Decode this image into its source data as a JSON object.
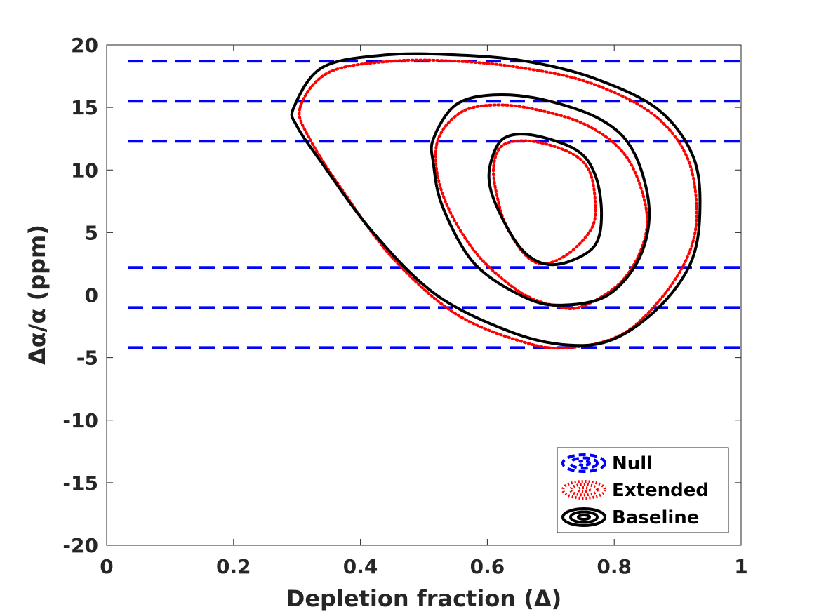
{
  "chart_data": {
    "type": "contour",
    "xlabel": "Depletion fraction (Δ)",
    "ylabel": "Δα/α (ppm)",
    "xlim": [
      0,
      1
    ],
    "ylim": [
      -20,
      20
    ],
    "xticks": [
      0,
      0.2,
      0.4,
      0.6,
      0.8,
      1
    ],
    "xtick_labels": [
      "0",
      "0.2",
      "0.4",
      "0.6",
      "0.8",
      "1"
    ],
    "yticks": [
      -20,
      -15,
      -10,
      -5,
      0,
      5,
      10,
      15,
      20
    ],
    "ytick_labels": [
      "-20",
      "-15",
      "-10",
      "-5",
      "0",
      "5",
      "10",
      "15",
      "20"
    ],
    "grid": false,
    "legend_position": "bottom-right",
    "series": [
      {
        "name": "Null",
        "color": "#0000ff",
        "style": "dashed",
        "lines": [
          {
            "y": 18.7,
            "x_range": [
              0,
              1
            ]
          },
          {
            "y": 15.5,
            "x_range": [
              0,
              1
            ]
          },
          {
            "y": 12.3,
            "x_range": [
              0,
              1
            ]
          },
          {
            "y": 2.2,
            "x_range": [
              0,
              1
            ]
          },
          {
            "y": -1.0,
            "x_range": [
              0,
              1
            ]
          },
          {
            "y": -4.2,
            "x_range": [
              0,
              1
            ]
          }
        ]
      },
      {
        "name": "Extended",
        "color": "#ff0000",
        "style": "dotted",
        "contours": [
          [
            [
              0.61,
              10.3
            ],
            [
              0.625,
              12.0
            ],
            [
              0.67,
              12.3
            ],
            [
              0.73,
              11.4
            ],
            [
              0.76,
              10.0
            ],
            [
              0.77,
              7.5
            ],
            [
              0.765,
              5.4
            ],
            [
              0.73,
              3.4
            ],
            [
              0.69,
              2.5
            ],
            [
              0.66,
              3.2
            ],
            [
              0.63,
              5.5
            ],
            [
              0.615,
              8.0
            ],
            [
              0.61,
              10.3
            ]
          ],
          [
            [
              0.52,
              12.0
            ],
            [
              0.555,
              14.5
            ],
            [
              0.61,
              15.2
            ],
            [
              0.68,
              14.8
            ],
            [
              0.76,
              13.5
            ],
            [
              0.82,
              11.0
            ],
            [
              0.85,
              7.0
            ],
            [
              0.845,
              4.0
            ],
            [
              0.81,
              1.0
            ],
            [
              0.75,
              -0.9
            ],
            [
              0.71,
              -0.9
            ],
            [
              0.65,
              0.3
            ],
            [
              0.58,
              3.5
            ],
            [
              0.53,
              8.0
            ],
            [
              0.52,
              12.0
            ]
          ],
          [
            [
              0.305,
              15.0
            ],
            [
              0.35,
              17.8
            ],
            [
              0.45,
              18.7
            ],
            [
              0.55,
              18.7
            ],
            [
              0.65,
              18.2
            ],
            [
              0.76,
              17.0
            ],
            [
              0.86,
              14.5
            ],
            [
              0.915,
              11.0
            ],
            [
              0.93,
              6.5
            ],
            [
              0.915,
              3.0
            ],
            [
              0.87,
              -0.5
            ],
            [
              0.81,
              -3.2
            ],
            [
              0.73,
              -4.2
            ],
            [
              0.66,
              -3.8
            ],
            [
              0.55,
              -1.5
            ],
            [
              0.45,
              3.0
            ],
            [
              0.37,
              8.5
            ],
            [
              0.32,
              12.5
            ],
            [
              0.305,
              15.0
            ]
          ]
        ]
      },
      {
        "name": "Baseline",
        "color": "#000000",
        "style": "solid",
        "contours": [
          [
            [
              0.605,
              10.5
            ],
            [
              0.625,
              12.5
            ],
            [
              0.67,
              12.8
            ],
            [
              0.74,
              11.6
            ],
            [
              0.77,
              9.6
            ],
            [
              0.78,
              6.5
            ],
            [
              0.77,
              4.0
            ],
            [
              0.73,
              2.7
            ],
            [
              0.69,
              2.5
            ],
            [
              0.655,
              3.6
            ],
            [
              0.625,
              6.0
            ],
            [
              0.605,
              8.5
            ],
            [
              0.605,
              10.5
            ]
          ],
          [
            [
              0.515,
              12.5
            ],
            [
              0.55,
              15.2
            ],
            [
              0.61,
              16.0
            ],
            [
              0.69,
              15.6
            ],
            [
              0.78,
              14.0
            ],
            [
              0.83,
              11.5
            ],
            [
              0.855,
              7.0
            ],
            [
              0.84,
              3.0
            ],
            [
              0.79,
              0.0
            ],
            [
              0.72,
              -0.8
            ],
            [
              0.66,
              -0.2
            ],
            [
              0.58,
              2.5
            ],
            [
              0.53,
              7.0
            ],
            [
              0.515,
              10.5
            ],
            [
              0.515,
              12.5
            ]
          ],
          [
            [
              0.295,
              15.0
            ],
            [
              0.34,
              18.2
            ],
            [
              0.44,
              19.2
            ],
            [
              0.55,
              19.2
            ],
            [
              0.66,
              18.7
            ],
            [
              0.77,
              17.3
            ],
            [
              0.87,
              14.8
            ],
            [
              0.925,
              11.0
            ],
            [
              0.935,
              6.5
            ],
            [
              0.92,
              2.5
            ],
            [
              0.87,
              -1.0
            ],
            [
              0.8,
              -3.5
            ],
            [
              0.73,
              -4.0
            ],
            [
              0.64,
              -3.0
            ],
            [
              0.52,
              0.0
            ],
            [
              0.42,
              5.0
            ],
            [
              0.34,
              10.5
            ],
            [
              0.3,
              13.5
            ],
            [
              0.295,
              15.0
            ]
          ]
        ]
      }
    ]
  }
}
